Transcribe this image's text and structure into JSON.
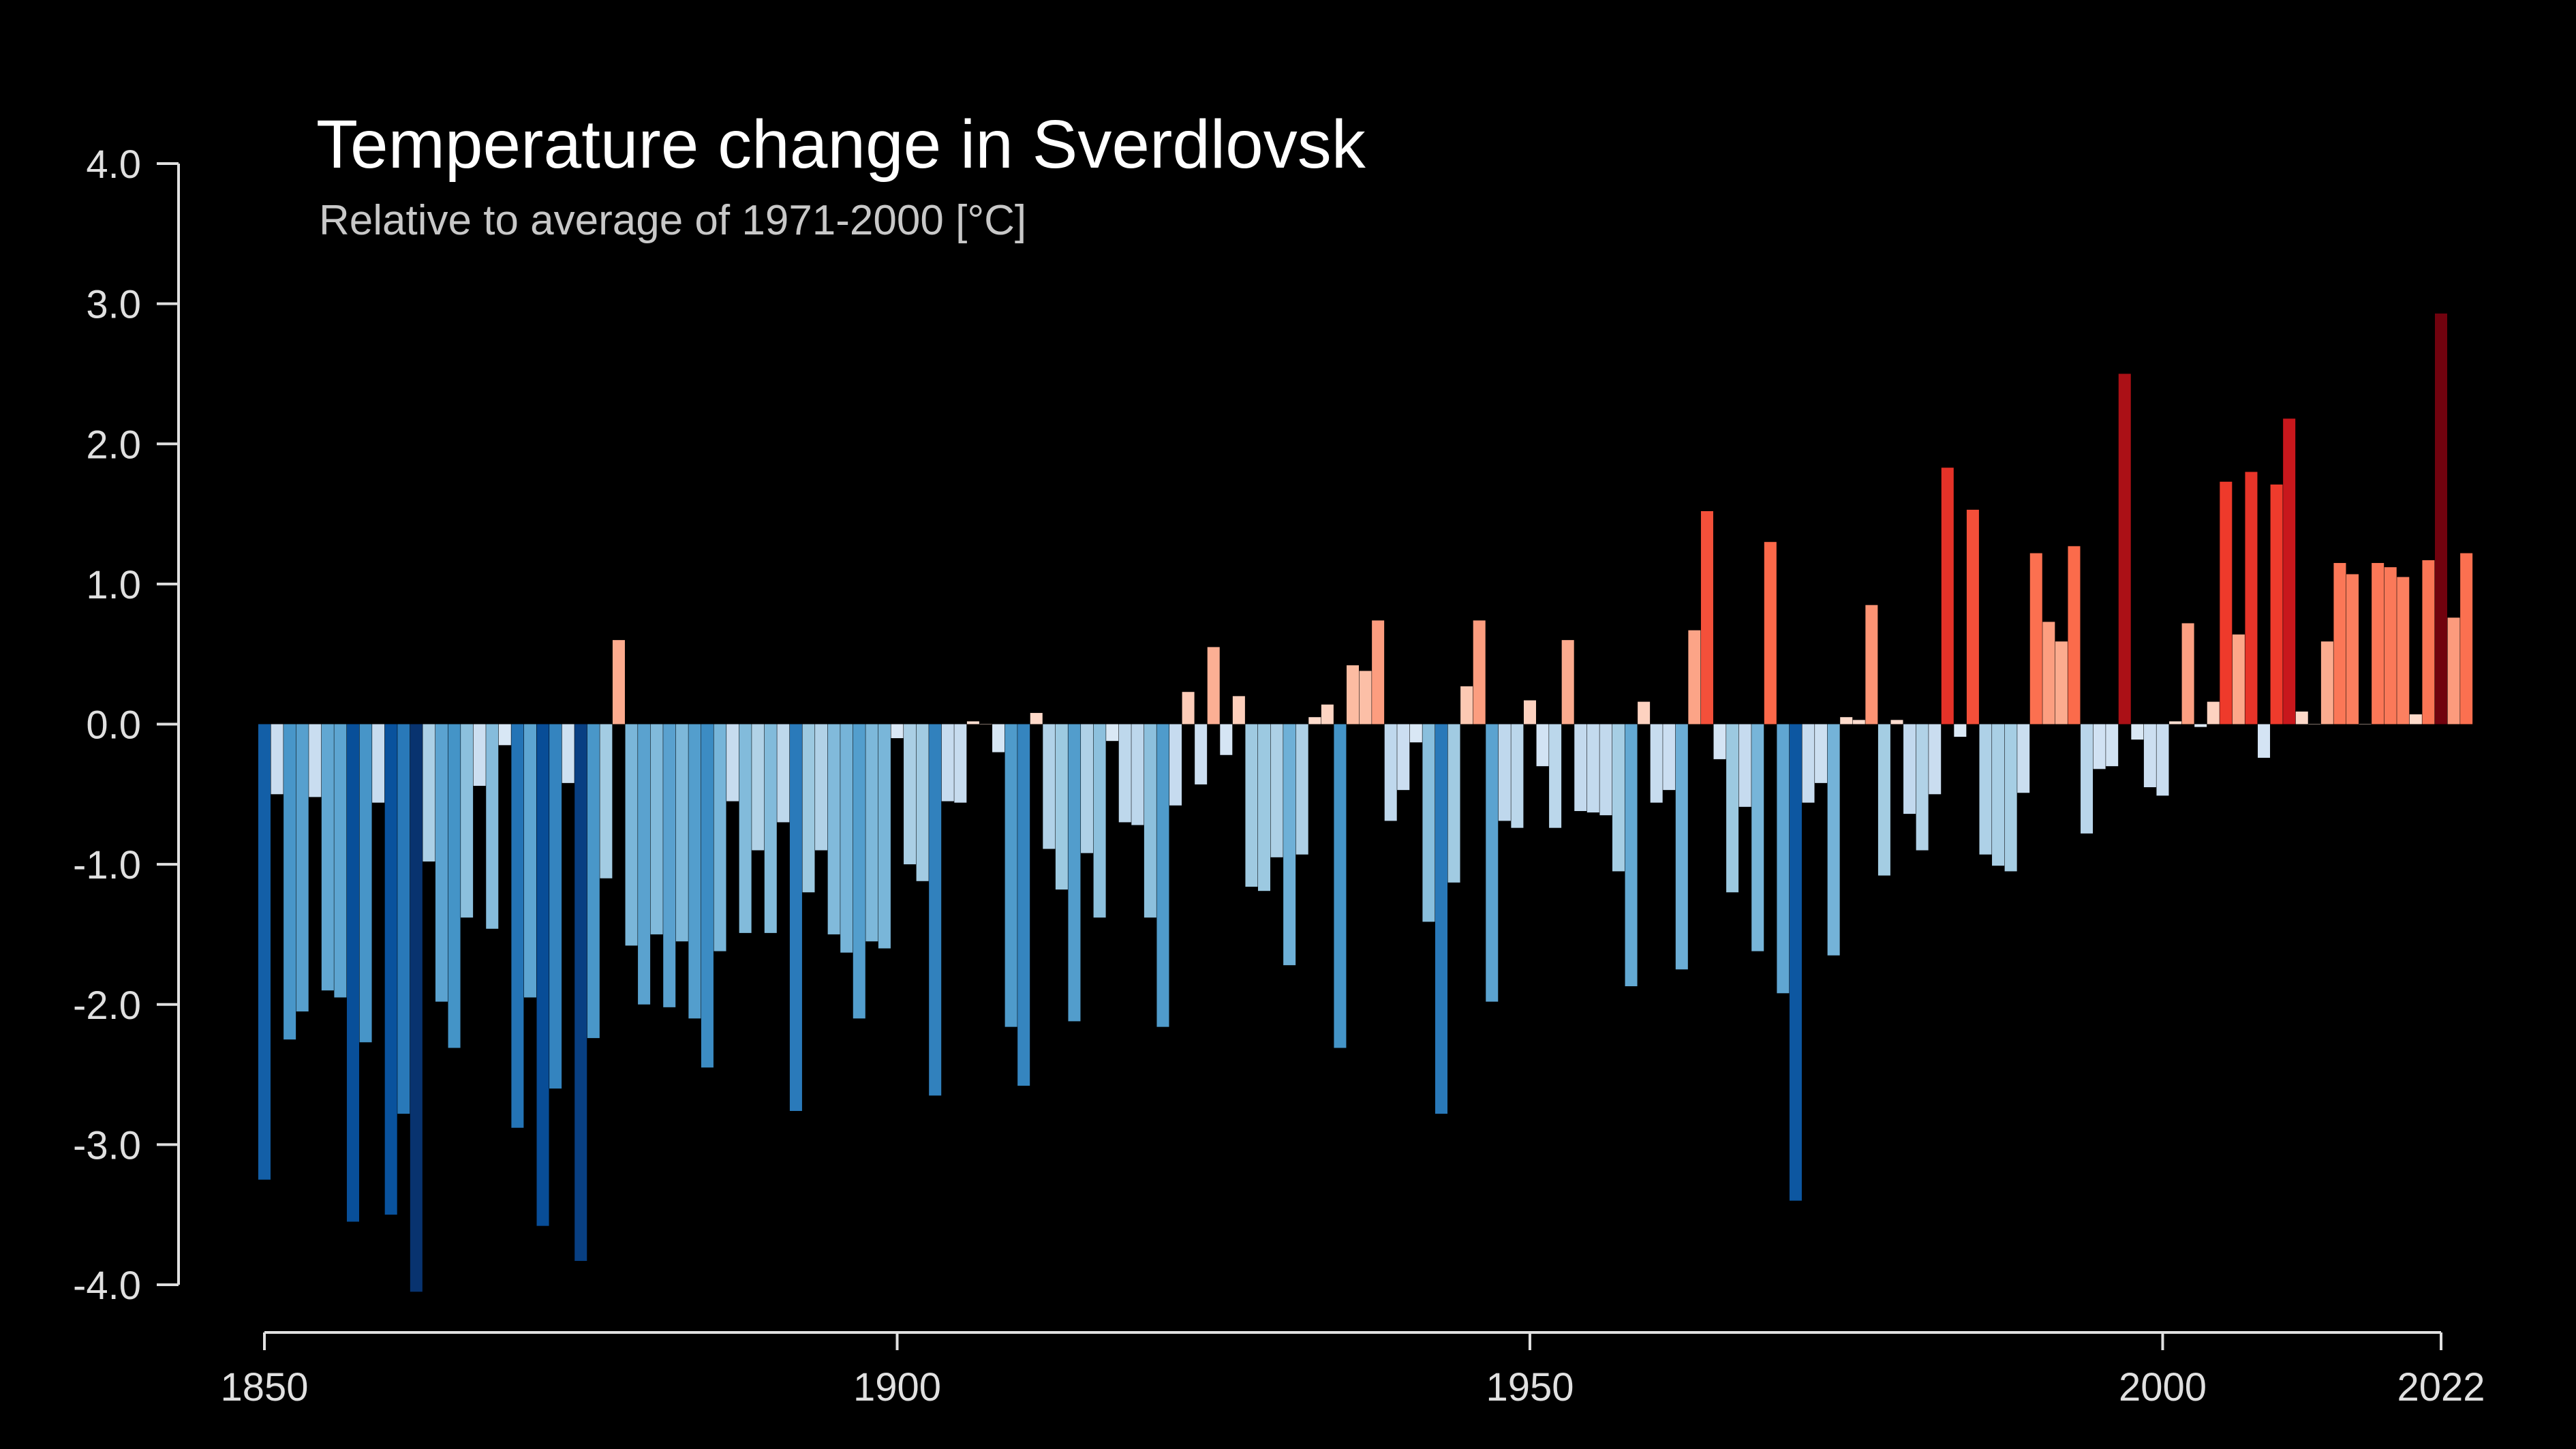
{
  "chart_data": {
    "type": "bar",
    "title": "Temperature change in Sverdlovsk",
    "subtitle": "Relative to average of 1971-2000  [°C]",
    "xlabel": "",
    "ylabel": "",
    "x_start": 1850,
    "x_end": 2022,
    "xlim": [
      1850,
      2022
    ],
    "ylim": [
      -4.0,
      4.0
    ],
    "x_ticks": [
      "1850",
      "1900",
      "1950",
      "2000",
      "2022"
    ],
    "y_ticks": [
      "4.0",
      "3.0",
      "2.0",
      "1.0",
      "0.0",
      "-1.0",
      "-2.0",
      "-3.0",
      "-4.0"
    ],
    "grid": false,
    "legend": "none",
    "colors": {
      "background": "#000000",
      "axis": "#e0e0e0",
      "cold_extreme": "#08306b",
      "warm_extreme": "#67000d"
    },
    "values": [
      -3.25,
      -0.5,
      -2.25,
      -2.05,
      -0.52,
      -1.9,
      -1.95,
      -3.55,
      -2.27,
      -0.56,
      -3.5,
      -2.78,
      -4.05,
      -0.98,
      -1.98,
      -2.31,
      -1.38,
      -0.44,
      -1.46,
      -0.15,
      -2.88,
      -1.95,
      -3.58,
      -2.6,
      -0.42,
      -3.83,
      -2.24,
      -1.1,
      0.6,
      -1.58,
      -2.0,
      -1.5,
      -2.02,
      -1.55,
      -2.1,
      -2.45,
      -1.62,
      -0.55,
      -1.49,
      -0.9,
      -1.49,
      -0.7,
      -2.76,
      -1.2,
      -0.9,
      -1.5,
      -1.63,
      -2.1,
      -1.55,
      -1.6,
      -0.1,
      -1.0,
      -1.12,
      -2.65,
      -0.55,
      -0.56,
      0.02,
      0.0,
      -0.2,
      -2.16,
      -2.58,
      0.08,
      -0.89,
      -1.18,
      -2.12,
      -0.92,
      -1.38,
      -0.12,
      -0.7,
      -0.72,
      -1.38,
      -2.16,
      -0.58,
      0.23,
      -0.43,
      0.55,
      -0.22,
      0.2,
      -1.16,
      -1.19,
      -0.95,
      -1.72,
      -0.93,
      0.05,
      0.14,
      -2.31,
      0.42,
      0.38,
      0.74,
      -0.69,
      -0.47,
      -0.13,
      -1.41,
      -2.78,
      -1.13,
      0.27,
      0.74,
      -1.98,
      -0.69,
      -0.74,
      0.17,
      -0.3,
      -0.74,
      0.6,
      -0.62,
      -0.63,
      -0.65,
      -1.05,
      -1.87,
      0.16,
      -0.56,
      -0.47,
      -1.75,
      0.67,
      1.52,
      -0.25,
      -1.2,
      -0.59,
      -1.62,
      1.3,
      -1.92,
      -3.4,
      -0.56,
      -0.42,
      -1.65,
      0.05,
      0.03,
      0.85,
      -1.08,
      0.03,
      -0.64,
      -0.9,
      -0.5,
      1.83,
      -0.09,
      1.53,
      -0.93,
      -1.01,
      -1.05,
      -0.49,
      1.22,
      0.73,
      0.59,
      1.27,
      -0.78,
      -0.32,
      -0.3,
      2.5,
      -0.11,
      -0.45,
      -0.51,
      0.02,
      0.72,
      -0.02,
      0.16,
      1.73,
      0.64,
      1.8,
      -0.24,
      1.71,
      2.18,
      0.09,
      0.0,
      0.59,
      1.15,
      1.07,
      0.0,
      1.15,
      1.12,
      1.05,
      0.07,
      1.17,
      2.93,
      0.76,
      1.22
    ]
  }
}
